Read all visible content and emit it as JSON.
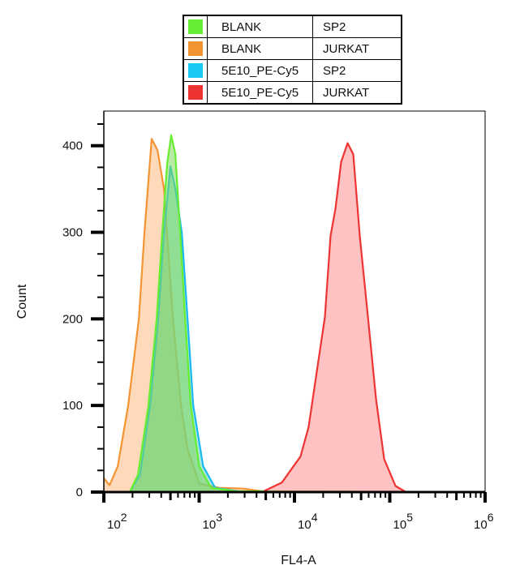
{
  "chart_data": {
    "type": "area",
    "title": "",
    "xlabel": "FL4-A",
    "ylabel": "Count",
    "xscale": "log",
    "xlim": [
      100,
      1000000
    ],
    "ylim": [
      0,
      440
    ],
    "xticks": [
      {
        "v": 100,
        "base": "10",
        "exp": "2"
      },
      {
        "v": 1000,
        "base": "10",
        "exp": "3"
      },
      {
        "v": 10000,
        "base": "10",
        "exp": "4"
      },
      {
        "v": 100000,
        "base": "10",
        "exp": "5"
      },
      {
        "v": 1000000,
        "base": "10",
        "exp": "6"
      }
    ],
    "yticks": [
      0,
      100,
      200,
      300,
      400
    ],
    "grid": false,
    "legend_placement": "top-center",
    "series": [
      {
        "name": "BLANK",
        "sample": "JURKAT",
        "stroke": "#f39433",
        "fill": "#fdbb84",
        "x": [
          100,
          115,
          140,
          180,
          233,
          267,
          318,
          365,
          428,
          531,
          646,
          755,
          1000,
          1620,
          2920,
          5260
        ],
        "y": [
          16,
          8,
          30,
          100,
          200,
          300,
          408,
          395,
          350,
          200,
          100,
          50,
          10,
          5,
          4,
          0
        ]
      },
      {
        "name": "5E10_PE-Cy5",
        "sample": "SP2",
        "stroke": "#1ab8f0",
        "fill": "#5fd3c0",
        "x": [
          187,
          240,
          306,
          372,
          428,
          500,
          563,
          657,
          755,
          867,
          1100,
          1470,
          2920,
          1000000
        ],
        "y": [
          0,
          20,
          100,
          200,
          300,
          376,
          350,
          300,
          200,
          100,
          30,
          5,
          0,
          0
        ]
      },
      {
        "name": "BLANK",
        "sample": "SP2",
        "stroke": "#66ee33",
        "fill": "#7fd85a",
        "x": [
          187,
          228,
          294,
          358,
          411,
          462,
          510,
          563,
          632,
          713,
          817,
          1000,
          1330,
          2400,
          1000000
        ],
        "y": [
          0,
          20,
          100,
          200,
          300,
          380,
          412,
          390,
          300,
          200,
          100,
          30,
          5,
          1,
          0
        ]
      },
      {
        "name": "5E10_PE-Cy5",
        "sample": "JURKAT",
        "stroke": "#ee3333",
        "fill": "#ff8f8f",
        "x": [
          4780,
          7360,
          11560,
          14060,
          17130,
          20850,
          23900,
          26900,
          30850,
          36100,
          41400,
          48400,
          59000,
          71800,
          87400,
          115000,
          148000
        ],
        "y": [
          1,
          11,
          41,
          75,
          139,
          202,
          296,
          327,
          381,
          403,
          390,
          296,
          202,
          107,
          38,
          7,
          0
        ]
      }
    ]
  }
}
